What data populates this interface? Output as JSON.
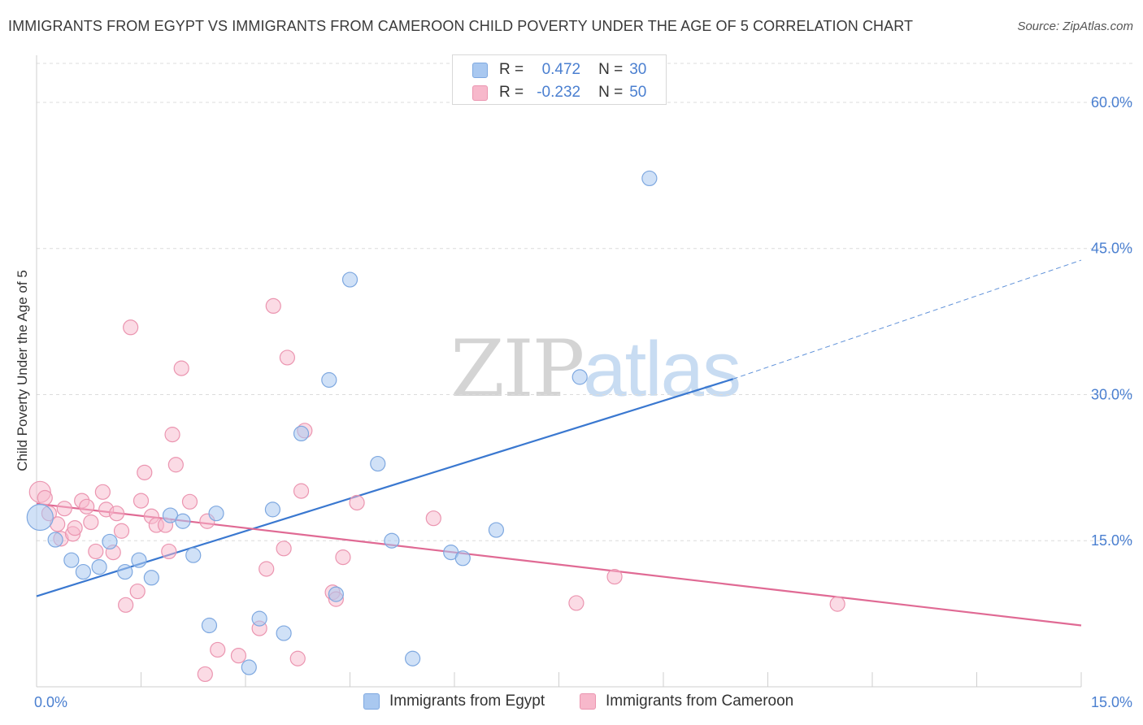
{
  "header": {
    "title": "IMMIGRANTS FROM EGYPT VS IMMIGRANTS FROM CAMEROON CHILD POVERTY UNDER THE AGE OF 5 CORRELATION CHART",
    "source": "Source: ZipAtlas.com"
  },
  "watermark": {
    "zip": "ZIP",
    "atlas": "atlas"
  },
  "legend_top": {
    "rows": [
      {
        "r_label": "R =",
        "r_value": "0.472",
        "n_label": "N =",
        "n_value": "30",
        "color": "#a9c8f0"
      },
      {
        "r_label": "R =",
        "r_value": "-0.232",
        "n_label": "N =",
        "n_value": "50",
        "color": "#f7b8cb"
      }
    ]
  },
  "legend_bottom": {
    "items": [
      {
        "label": "Immigrants from Egypt",
        "color": "#a9c8f0"
      },
      {
        "label": "Immigrants from Cameroon",
        "color": "#f7b8cb"
      }
    ]
  },
  "chart_data": {
    "type": "scatter",
    "title": "IMMIGRANTS FROM EGYPT VS IMMIGRANTS FROM CAMEROON CHILD POVERTY UNDER THE AGE OF 5 CORRELATION CHART",
    "xlabel": "",
    "ylabel": "Child Poverty Under the Age of 5",
    "xlim": [
      0,
      15
    ],
    "ylim": [
      0,
      64
    ],
    "x_tick_labels": [
      "0.0%",
      "15.0%"
    ],
    "y_ticks": [
      15,
      30,
      45,
      60
    ],
    "y_tick_labels": [
      "15.0%",
      "30.0%",
      "45.0%",
      "60.0%"
    ],
    "grid": true,
    "legend_position": "bottom",
    "colors": {
      "egypt_fill": "#a9c8f0",
      "egypt_line": "#3a78d0",
      "cameroon_fill": "#f7b8cb",
      "cameroon_line": "#e06a94",
      "tick_label": "#4a7fd0"
    },
    "series": [
      {
        "name": "Immigrants from Egypt",
        "points": [
          [
            0.05,
            17.4
          ],
          [
            0.27,
            15.1
          ],
          [
            0.5,
            13.0
          ],
          [
            0.67,
            11.8
          ],
          [
            0.9,
            12.3
          ],
          [
            1.05,
            14.9
          ],
          [
            1.27,
            11.8
          ],
          [
            1.47,
            13.0
          ],
          [
            1.65,
            11.2
          ],
          [
            1.92,
            17.6
          ],
          [
            2.1,
            17.0
          ],
          [
            2.25,
            13.5
          ],
          [
            2.48,
            6.3
          ],
          [
            2.58,
            17.8
          ],
          [
            3.05,
            2.0
          ],
          [
            3.2,
            7.0
          ],
          [
            3.39,
            18.2
          ],
          [
            3.55,
            5.5
          ],
          [
            3.8,
            26.0
          ],
          [
            4.2,
            31.5
          ],
          [
            4.3,
            9.5
          ],
          [
            4.5,
            41.8
          ],
          [
            4.9,
            22.9
          ],
          [
            5.1,
            15.0
          ],
          [
            5.4,
            2.9
          ],
          [
            5.95,
            13.8
          ],
          [
            6.12,
            13.2
          ],
          [
            6.6,
            16.1
          ],
          [
            7.8,
            31.8
          ],
          [
            8.8,
            52.2
          ]
        ],
        "trend": {
          "x": [
            0,
            10
          ],
          "y": [
            9.3,
            31.6
          ],
          "dashed_extension": {
            "x": [
              10,
              15
            ],
            "y": [
              31.6,
              43.8
            ]
          }
        }
      },
      {
        "name": "Immigrants from Cameroon",
        "points": [
          [
            0.05,
            20.0
          ],
          [
            0.12,
            19.4
          ],
          [
            0.18,
            17.8
          ],
          [
            0.3,
            16.7
          ],
          [
            0.35,
            15.2
          ],
          [
            0.4,
            18.3
          ],
          [
            0.52,
            15.7
          ],
          [
            0.55,
            16.3
          ],
          [
            0.65,
            19.1
          ],
          [
            0.72,
            18.5
          ],
          [
            0.78,
            16.9
          ],
          [
            0.85,
            13.9
          ],
          [
            0.95,
            20.0
          ],
          [
            1.0,
            18.2
          ],
          [
            1.1,
            13.8
          ],
          [
            1.15,
            17.8
          ],
          [
            1.22,
            16.0
          ],
          [
            1.28,
            8.4
          ],
          [
            1.35,
            36.9
          ],
          [
            1.45,
            9.8
          ],
          [
            1.5,
            19.1
          ],
          [
            1.55,
            22.0
          ],
          [
            1.65,
            17.5
          ],
          [
            1.72,
            16.6
          ],
          [
            1.85,
            16.6
          ],
          [
            1.9,
            13.9
          ],
          [
            1.95,
            25.9
          ],
          [
            2.0,
            22.8
          ],
          [
            2.08,
            32.7
          ],
          [
            2.2,
            19.0
          ],
          [
            2.42,
            1.3
          ],
          [
            2.45,
            17.0
          ],
          [
            2.6,
            3.8
          ],
          [
            2.9,
            3.2
          ],
          [
            3.2,
            6.0
          ],
          [
            3.3,
            12.1
          ],
          [
            3.4,
            39.1
          ],
          [
            3.55,
            14.2
          ],
          [
            3.6,
            33.8
          ],
          [
            3.75,
            2.9
          ],
          [
            3.8,
            20.1
          ],
          [
            3.85,
            26.3
          ],
          [
            4.25,
            9.7
          ],
          [
            4.3,
            9.0
          ],
          [
            4.4,
            13.3
          ],
          [
            4.6,
            18.9
          ],
          [
            5.7,
            17.3
          ],
          [
            7.75,
            8.6
          ],
          [
            8.3,
            11.3
          ],
          [
            11.5,
            8.5
          ]
        ],
        "trend": {
          "x": [
            0,
            15
          ],
          "y": [
            18.8,
            6.3
          ]
        }
      }
    ]
  }
}
